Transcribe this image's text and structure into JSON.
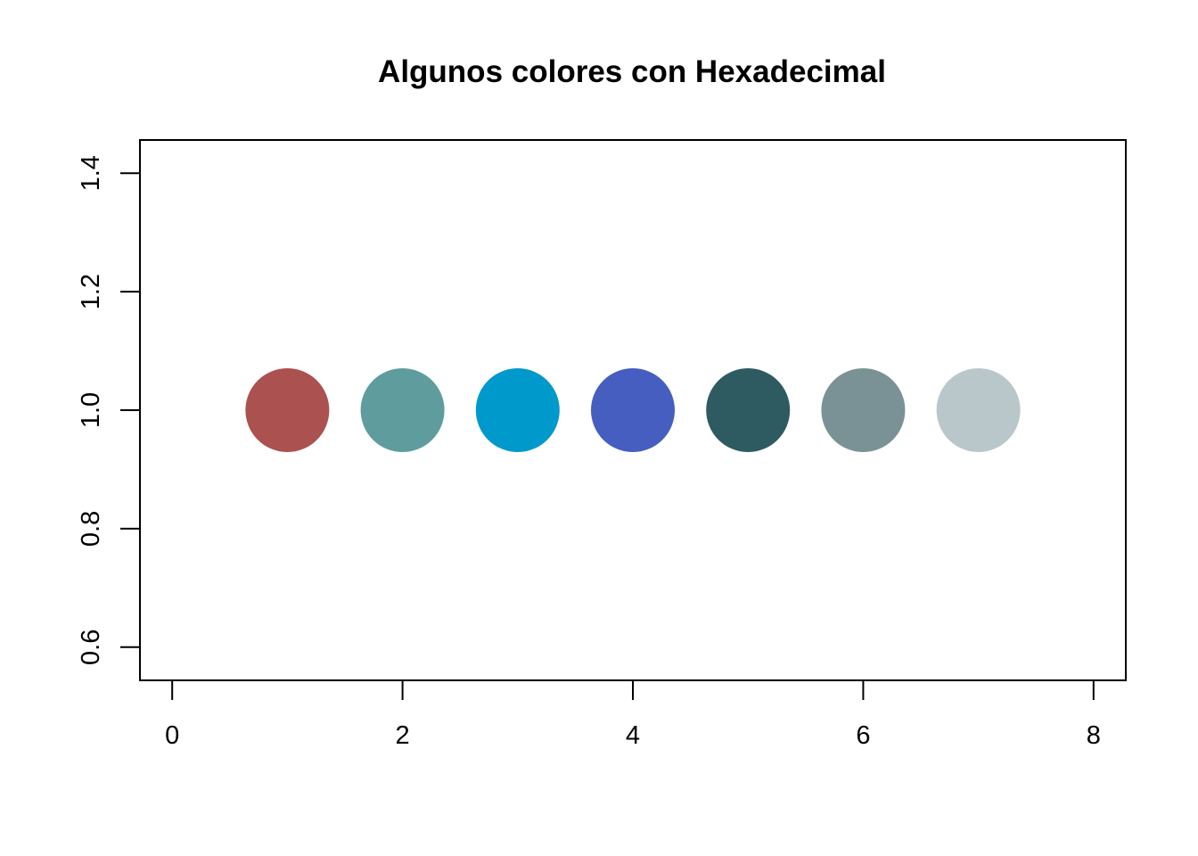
{
  "chart_data": {
    "type": "scatter",
    "title": "Algunos colores con Hexadecimal",
    "xlabel": "",
    "ylabel": "",
    "xlim": [
      -0.28,
      8.28
    ],
    "ylim": [
      0.544,
      1.456
    ],
    "x_ticks": [
      0,
      2,
      4,
      6,
      8
    ],
    "x_tick_labels": [
      "0",
      "2",
      "4",
      "6",
      "8"
    ],
    "y_ticks": [
      0.6,
      0.8,
      1.0,
      1.2,
      1.4
    ],
    "y_tick_labels": [
      "0.6",
      "0.8",
      "1.0",
      "1.2",
      "1.4"
    ],
    "grid": false,
    "legend": "none",
    "points": [
      {
        "x": 1,
        "y": 1.0,
        "color": "#ab5150"
      },
      {
        "x": 2,
        "y": 1.0,
        "color": "#5f9c9d"
      },
      {
        "x": 3,
        "y": 1.0,
        "color": "#0099cc"
      },
      {
        "x": 4,
        "y": 1.0,
        "color": "#455ebf"
      },
      {
        "x": 5,
        "y": 1.0,
        "color": "#2e5b62"
      },
      {
        "x": 6,
        "y": 1.0,
        "color": "#7a9296"
      },
      {
        "x": 7,
        "y": 1.0,
        "color": "#b9c7cb"
      }
    ]
  }
}
